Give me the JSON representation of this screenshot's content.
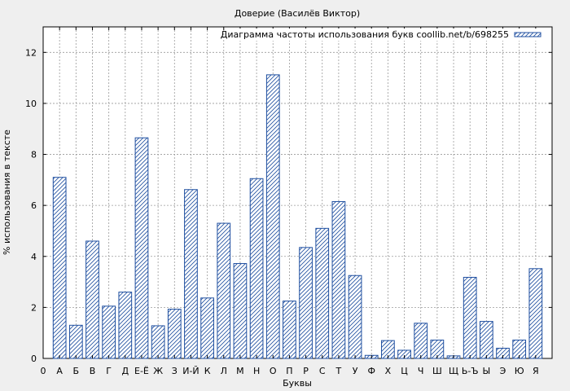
{
  "chart_data": {
    "type": "bar",
    "title": "Доверие (Василёв Виктор)",
    "xlabel": "Буквы",
    "ylabel": "% использования в тексте",
    "legend": {
      "label": "Диаграмма частоты использования букв coollib.net/b/698255",
      "placement": "top-right"
    },
    "x_start_tick": "0",
    "categories": [
      "А",
      "Б",
      "В",
      "Г",
      "Д",
      "Е-Ё",
      "Ж",
      "З",
      "И-Й",
      "К",
      "Л",
      "М",
      "Н",
      "О",
      "П",
      "Р",
      "С",
      "Т",
      "У",
      "Ф",
      "Х",
      "Ц",
      "Ч",
      "Ш",
      "Щ",
      "Ь-Ъ",
      "Ы",
      "Э",
      "Ю",
      "Я"
    ],
    "values": [
      7.1,
      1.3,
      4.6,
      2.05,
      2.6,
      8.65,
      1.28,
      1.93,
      6.62,
      2.37,
      5.3,
      3.72,
      7.05,
      11.12,
      2.25,
      4.35,
      5.1,
      6.15,
      3.25,
      0.12,
      0.7,
      0.32,
      1.38,
      0.72,
      0.1,
      3.18,
      1.45,
      0.4,
      0.72,
      3.52
    ],
    "yticks": [
      0,
      2,
      4,
      6,
      8,
      10,
      12
    ],
    "ylim": [
      0,
      13
    ],
    "grid": true,
    "colors": {
      "bar_stroke": "#1f4fa0",
      "hatch": "#1f4fa0",
      "bar_fill": "#ffffff",
      "plot_bg": "#ffffff",
      "page_bg": "#efefef",
      "grid": "#9a9a9a"
    }
  }
}
